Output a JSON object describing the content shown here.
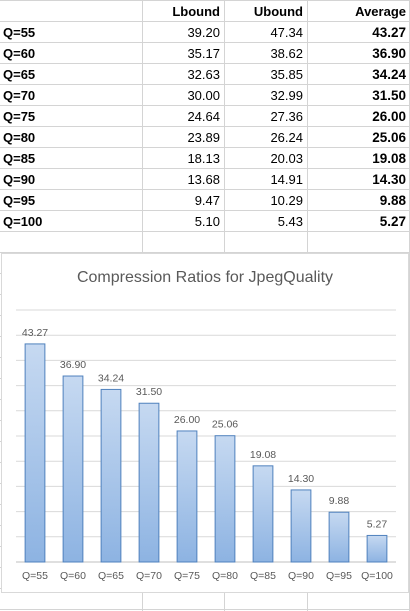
{
  "table": {
    "headers": [
      "",
      "Lbound",
      "Ubound",
      "Average"
    ],
    "rows": [
      {
        "label": "Q=55",
        "lbound": "39.20",
        "ubound": "47.34",
        "average": "43.27"
      },
      {
        "label": "Q=60",
        "lbound": "35.17",
        "ubound": "38.62",
        "average": "36.90"
      },
      {
        "label": "Q=65",
        "lbound": "32.63",
        "ubound": "35.85",
        "average": "34.24"
      },
      {
        "label": "Q=70",
        "lbound": "30.00",
        "ubound": "32.99",
        "average": "31.50"
      },
      {
        "label": "Q=75",
        "lbound": "24.64",
        "ubound": "27.36",
        "average": "26.00"
      },
      {
        "label": "Q=80",
        "lbound": "23.89",
        "ubound": "26.24",
        "average": "25.06"
      },
      {
        "label": "Q=85",
        "lbound": "18.13",
        "ubound": "20.03",
        "average": "19.08"
      },
      {
        "label": "Q=90",
        "lbound": "13.68",
        "ubound": "14.91",
        "average": "14.30"
      },
      {
        "label": "Q=95",
        "lbound": "9.47",
        "ubound": "10.29",
        "average": "9.88"
      },
      {
        "label": "Q=100",
        "lbound": "5.10",
        "ubound": "5.43",
        "average": "5.27"
      }
    ]
  },
  "chart_data": {
    "type": "bar",
    "title": "Compression Ratios for JpegQuality",
    "categories": [
      "Q=55",
      "Q=60",
      "Q=65",
      "Q=70",
      "Q=75",
      "Q=80",
      "Q=85",
      "Q=90",
      "Q=95",
      "Q=100"
    ],
    "values": [
      43.27,
      36.9,
      34.24,
      31.5,
      26.0,
      25.06,
      19.08,
      14.3,
      9.88,
      5.27
    ],
    "data_labels": [
      "43.27",
      "36.90",
      "34.24",
      "31.50",
      "26.00",
      "25.06",
      "19.08",
      "14.30",
      "9.88",
      "5.27"
    ],
    "ylim": [
      0,
      50
    ],
    "gridlines": true,
    "legend": "none",
    "bar_fill_top": "#c6d9f1",
    "bar_fill_bottom": "#8db3e2",
    "bar_stroke": "#4f81bd"
  }
}
